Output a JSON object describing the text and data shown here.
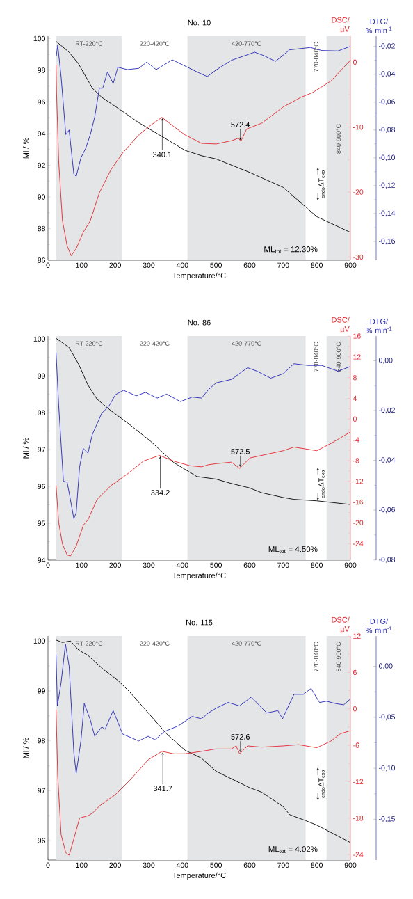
{
  "chart_data": [
    {
      "type": "line",
      "title": "No. 10",
      "xlabel": "Temperature/°C",
      "ylabel": "Ml / %",
      "y2label": "DSC/ µV",
      "y3label": "DTG/ % min$^{-1}$",
      "xlim": [
        0,
        900
      ],
      "xticks": [
        0,
        100,
        200,
        300,
        400,
        500,
        600,
        700,
        800,
        900
      ],
      "ylim": [
        86,
        100.15
      ],
      "yticks": [
        86,
        88,
        90,
        92,
        94,
        96,
        98,
        100
      ],
      "y2lim": [
        -30.5,
        4.0
      ],
      "y2ticks": [
        0,
        -10,
        -20,
        -30
      ],
      "y3lim": [
        -0.1735,
        -0.0127
      ],
      "y3ticks": [
        {
          "value": -0.02,
          "label": "-0,02"
        },
        {
          "value": -0.04,
          "label": "-0,04"
        },
        {
          "value": -0.06,
          "label": "-0,06"
        },
        {
          "value": -0.08,
          "label": "-0,08"
        },
        {
          "value": -0.1,
          "label": "-0,10"
        },
        {
          "value": -0.12,
          "label": "-0,12"
        },
        {
          "value": -0.14,
          "label": "-0,14"
        },
        {
          "value": -0.16,
          "label": "-0,16"
        }
      ],
      "series": [
        {
          "color": "#000000",
          "x": [
            25,
            63,
            91,
            132,
            160,
            201,
            270,
            339,
            408,
            457,
            500,
            600,
            700,
            800,
            900
          ],
          "values": [
            99.81,
            99.13,
            98.4,
            96.87,
            96.29,
            95.71,
            94.69,
            93.82,
            92.94,
            92.6,
            92.4,
            91.55,
            90.6,
            88.75,
            87.76
          ]
        },
        {
          "color": "#e3262c",
          "axis": "y2",
          "x": [
            24,
            25.5,
            32,
            43,
            57,
            69,
            84,
            105,
            126,
            153,
            188,
            222,
            270,
            306,
            339,
            374,
            408,
            457,
            500,
            546,
            567,
            574,
            591,
            636,
            700,
            753,
            787,
            842,
            900
          ],
          "values": [
            -0.4,
            -4.7,
            -15.4,
            -24.4,
            -28.3,
            -29.8,
            -28.7,
            -26.2,
            -24.4,
            -20.1,
            -16.5,
            -14.0,
            -11.2,
            -9.7,
            -8.5,
            -9.9,
            -11.2,
            -12.5,
            -12.6,
            -12.1,
            -11.7,
            -12.2,
            -10.3,
            -9.4,
            -6.9,
            -5.4,
            -4.7,
            -2.9,
            0.3
          ]
        },
        {
          "color": "#2626b8",
          "axis": "y3",
          "x": [
            25,
            29,
            39,
            53,
            63,
            77,
            84,
            98,
            112,
            126,
            139,
            153,
            163,
            177,
            194,
            208,
            236,
            270,
            294,
            322,
            339,
            370,
            401,
            443,
            474,
            500,
            546,
            615,
            643,
            677,
            719,
            781,
            815,
            863,
            900
          ],
          "values": [
            -0.0267,
            -0.0192,
            -0.0417,
            -0.0833,
            -0.08,
            -0.1117,
            -0.1133,
            -0.1,
            -0.0933,
            -0.0833,
            -0.0708,
            -0.05,
            -0.05,
            -0.0383,
            -0.0467,
            -0.035,
            -0.0367,
            -0.0358,
            -0.0313,
            -0.0367,
            -0.0342,
            -0.0297,
            -0.0333,
            -0.0383,
            -0.0417,
            -0.037,
            -0.03,
            -0.0242,
            -0.0267,
            -0.0308,
            -0.0225,
            -0.0208,
            -0.023,
            -0.0233,
            -0.02
          ]
        }
      ],
      "bands": [
        {
          "axis": "x",
          "from": 24,
          "to": 220,
          "label": "RT-220°C",
          "color": "#e4e5e7"
        },
        {
          "axis": "x",
          "from": 220,
          "to": 415,
          "label": "220-420°C",
          "color": "#ffffff"
        },
        {
          "axis": "x",
          "from": 415,
          "to": 767,
          "label": "420-770°C",
          "color": "#e4e5e7"
        },
        {
          "axis": "x",
          "from": 767,
          "to": 829,
          "label": "770-840°C",
          "color": "#ffffff"
        },
        {
          "axis": "x",
          "from": 829,
          "to": 900,
          "label": "840-900°C",
          "color": "#e4e5e7"
        }
      ],
      "annotations": [
        {
          "text": "340.1",
          "x": 340.1
        },
        {
          "text": "572.4",
          "x": 572.4
        },
        "ML$_{tot}$ = 12.30%",
        "$_{endo}$ΔT$_{exo}$"
      ]
    },
    {
      "type": "line",
      "title": "No. 86",
      "xlabel": "Temperature/°C",
      "ylabel": "Ml / %",
      "y2label": "DSC/ µV",
      "y3label": "DTG/ % min$^{-1}$",
      "xlim": [
        0,
        900
      ],
      "xticks": [
        0,
        100,
        200,
        300,
        400,
        500,
        600,
        700,
        800,
        900
      ],
      "ylim": [
        94,
        100.08
      ],
      "yticks": [
        94,
        95,
        96,
        97,
        98,
        99,
        100
      ],
      "y2lim": [
        -27.2,
        16
      ],
      "y2ticks": [
        16,
        12,
        8,
        4,
        0,
        -4,
        -8,
        -12,
        -16,
        -20,
        -24
      ],
      "y3lim": [
        -0.0801,
        0.0099
      ],
      "y3ticks": [
        {
          "value": 0,
          "label": "0,00"
        },
        {
          "value": -0.02,
          "label": "-0,02"
        },
        {
          "value": -0.04,
          "label": "-0,04"
        },
        {
          "value": -0.06,
          "label": "-0,06"
        },
        {
          "value": -0.08,
          "label": "-0,08"
        }
      ],
      "series": [
        {
          "color": "#000000",
          "x": [
            24,
            63,
            91,
            119,
            146,
            188,
            236,
            305,
            374,
            443,
            500,
            546,
            600,
            636,
            700,
            732,
            800,
            900
          ],
          "values": [
            100.02,
            99.77,
            99.32,
            98.75,
            98.37,
            98.05,
            97.73,
            97.23,
            96.65,
            96.27,
            96.2,
            96.08,
            95.96,
            95.83,
            95.7,
            95.65,
            95.61,
            95.51
          ]
        },
        {
          "color": "#e3262c",
          "axis": "y2",
          "x": [
            24,
            32,
            43,
            57,
            67,
            84,
            105,
            119,
            146,
            188,
            236,
            284,
            332,
            374,
            423,
            457,
            477,
            500,
            546,
            570,
            601,
            700,
            732,
            800,
            842,
            900
          ],
          "values": [
            -12.8,
            -20.0,
            -24.1,
            -26.2,
            -26.4,
            -24.5,
            -20.5,
            -19.4,
            -15.5,
            -12.8,
            -10.6,
            -8.1,
            -7.0,
            -8.1,
            -9.0,
            -9.2,
            -8.8,
            -8.6,
            -8.3,
            -9.5,
            -7.5,
            -6.1,
            -5.4,
            -6.1,
            -4.7,
            -2.5
          ]
        },
        {
          "color": "#2626b8",
          "axis": "y3",
          "x": [
            24,
            32,
            46,
            57,
            63,
            77,
            84,
            94,
            105,
            119,
            132,
            160,
            181,
            201,
            225,
            263,
            290,
            325,
            353,
            394,
            429,
            457,
            477,
            500,
            546,
            594,
            622,
            663,
            700,
            732,
            774,
            815,
            863,
            900
          ],
          "values": [
            0.0033,
            -0.0183,
            -0.0484,
            -0.0488,
            -0.053,
            -0.0634,
            -0.061,
            -0.0427,
            -0.0352,
            -0.0371,
            -0.0296,
            -0.0211,
            -0.0183,
            -0.0136,
            -0.0119,
            -0.0141,
            -0.0127,
            -0.015,
            -0.0134,
            -0.0164,
            -0.0146,
            -0.015,
            -0.0117,
            -0.0089,
            -0.0075,
            -0.0028,
            -0.0042,
            -0.007,
            -0.0052,
            -0.0012,
            -0.0019,
            -0.0019,
            -0.0042,
            -0.0023
          ]
        }
      ],
      "bands": [
        {
          "axis": "x",
          "from": 24,
          "to": 220,
          "label": "RT-220°C",
          "color": "#e4e5e7"
        },
        {
          "axis": "x",
          "from": 220,
          "to": 415,
          "label": "220-420°C",
          "color": "#ffffff"
        },
        {
          "axis": "x",
          "from": 415,
          "to": 767,
          "label": "420-770°C",
          "color": "#e4e5e7"
        },
        {
          "axis": "x",
          "from": 767,
          "to": 829,
          "label": "770-840°C",
          "color": "#ffffff"
        },
        {
          "axis": "x",
          "from": 829,
          "to": 900,
          "label": "840-900°C",
          "color": "#e4e5e7"
        }
      ],
      "annotations": [
        {
          "text": "334.2",
          "x": 334.2
        },
        {
          "text": "572.5",
          "x": 572.5
        },
        "ML$_{tot}$ = 4.50%",
        "$_{endo}$ΔT$_{exo}$"
      ]
    },
    {
      "type": "line",
      "title": "No. 115",
      "xlabel": "Temperature/°C",
      "ylabel": "Ml / %",
      "y2label": "DSC/ µV",
      "y3label": "DTG/ % min$^{-1}$",
      "xlim": [
        0,
        900
      ],
      "xticks": [
        0,
        100,
        200,
        300,
        400,
        500,
        600,
        700,
        800,
        900
      ],
      "ylim": [
        95.61,
        100.1
      ],
      "yticks": [
        96,
        97,
        98,
        99,
        100
      ],
      "y2lim": [
        -24.9,
        12
      ],
      "y2ticks": [
        12,
        6,
        0,
        -6,
        -12,
        -18,
        -24
      ],
      "y3lim": [
        -0.19,
        0.0297
      ],
      "y3ticks": [
        {
          "value": 0,
          "label": "0,00"
        },
        {
          "value": -0.05,
          "label": "-0,05"
        },
        {
          "value": -0.1,
          "label": "-0,10"
        },
        {
          "value": -0.15,
          "label": "-0,15"
        }
      ],
      "series": [
        {
          "color": "#000000",
          "x": [
            24,
            43,
            67,
            91,
            119,
            167,
            208,
            243,
            298,
            353,
            408,
            457,
            500,
            600,
            636,
            700,
            719,
            767,
            800,
            900
          ],
          "values": [
            100.02,
            99.97,
            100.0,
            99.82,
            99.71,
            99.42,
            99.21,
            98.98,
            98.56,
            98.14,
            97.81,
            97.65,
            97.39,
            97.06,
            96.97,
            96.68,
            96.52,
            96.4,
            96.31,
            95.96
          ]
        },
        {
          "color": "#e3262c",
          "axis": "y2",
          "x": [
            24,
            29,
            39,
            53,
            63,
            77,
            94,
            119,
            132,
            153,
            201,
            243,
            298,
            339,
            374,
            408,
            457,
            500,
            546,
            560,
            570,
            594,
            636,
            700,
            746,
            800,
            842,
            870,
            900
          ],
          "values": [
            -0.1,
            -11.0,
            -20.7,
            -23.7,
            -24.1,
            -21.4,
            -18.0,
            -17.6,
            -17.2,
            -16.0,
            -14.1,
            -11.8,
            -8.4,
            -7.0,
            -7.4,
            -7.4,
            -7.0,
            -6.6,
            -6.6,
            -6.1,
            -7.4,
            -6.1,
            -6.3,
            -6.1,
            -5.9,
            -6.4,
            -5.3,
            -4.1,
            -3.6
          ]
        },
        {
          "color": "#2626b8",
          "axis": "y3",
          "x": [
            24,
            28,
            39,
            52,
            63,
            77,
            84,
            98,
            108,
            126,
            139,
            160,
            170,
            194,
            222,
            270,
            298,
            319,
            346,
            388,
            429,
            457,
            477,
            500,
            536,
            570,
            605,
            651,
            684,
            698,
            732,
            760,
            783,
            808,
            829,
            856,
            880,
            900
          ],
          "values": [
            0.0114,
            -0.0389,
            -0.016,
            0.0217,
            0.0,
            -0.0847,
            -0.105,
            -0.0732,
            -0.0366,
            -0.0526,
            -0.0686,
            -0.0595,
            -0.0618,
            -0.0435,
            -0.0664,
            -0.0732,
            -0.0686,
            -0.0721,
            -0.0641,
            -0.0584,
            -0.0492,
            -0.0515,
            -0.0458,
            -0.0412,
            -0.0355,
            -0.0389,
            -0.0302,
            -0.0458,
            -0.0435,
            -0.0515,
            -0.0275,
            -0.0275,
            -0.0217,
            -0.0355,
            -0.0343,
            -0.0366,
            -0.0378,
            -0.032
          ]
        }
      ],
      "bands": [
        {
          "axis": "x",
          "from": 24,
          "to": 220,
          "label": "RT-220°C",
          "color": "#e4e5e7"
        },
        {
          "axis": "x",
          "from": 220,
          "to": 415,
          "label": "220-420°C",
          "color": "#ffffff"
        },
        {
          "axis": "x",
          "from": 415,
          "to": 767,
          "label": "420-770°C",
          "color": "#e4e5e7"
        },
        {
          "axis": "x",
          "from": 767,
          "to": 829,
          "label": "770-840°C",
          "color": "#ffffff"
        },
        {
          "axis": "x",
          "from": 829,
          "to": 900,
          "label": "840-900°C",
          "color": "#e4e5e7"
        }
      ],
      "annotations": [
        {
          "text": "341.7",
          "x": 341.7
        },
        {
          "text": "572.6",
          "x": 572.6
        },
        "ML$_{tot}$ = 4.02%",
        "$_{endo}$ΔT$_{exo}$"
      ]
    }
  ]
}
